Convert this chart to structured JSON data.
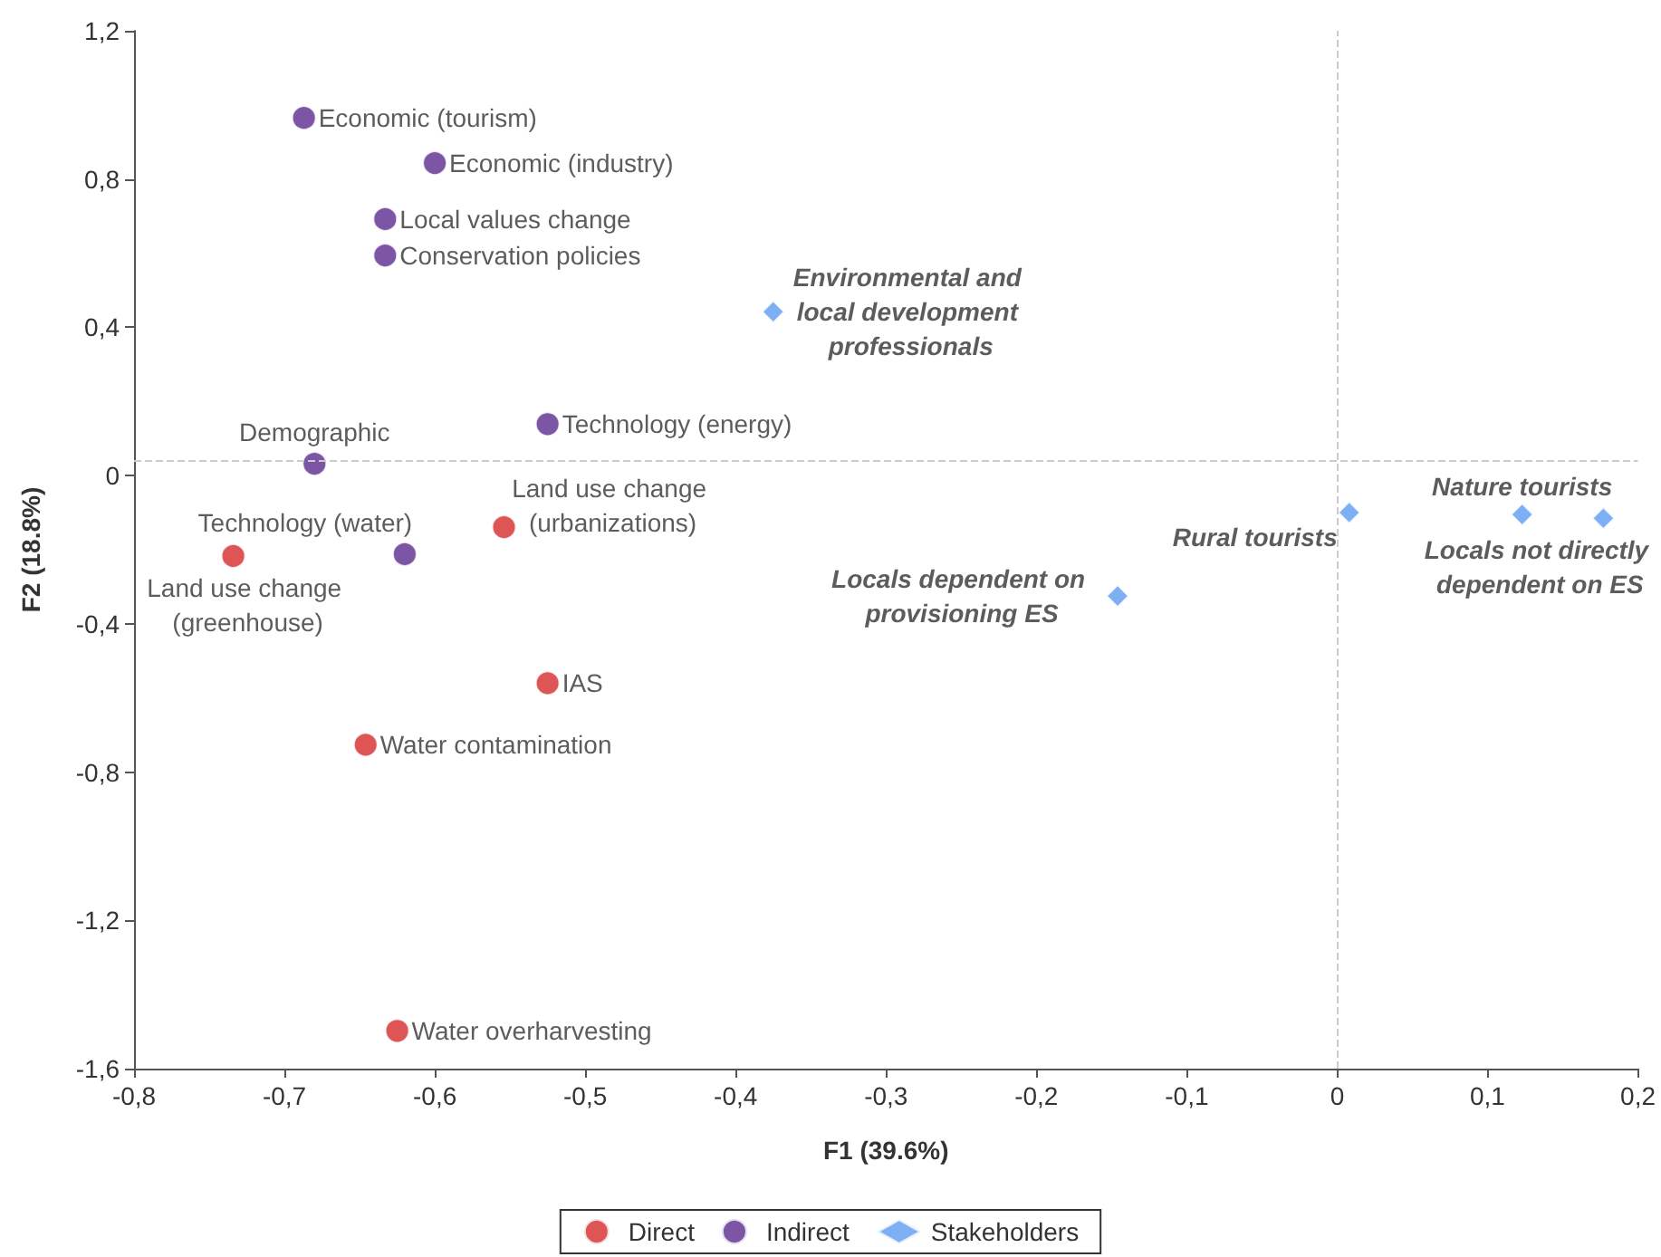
{
  "chart_data": {
    "type": "scatter",
    "xlabel": "F1 (39.6%)",
    "ylabel": "F2 (18.8%)",
    "xlim": [
      -0.8,
      0.2
    ],
    "xticks": [
      {
        "value": -0.8,
        "label": "-0,8"
      },
      {
        "value": -0.7,
        "label": "-0,7"
      },
      {
        "value": -0.6,
        "label": "-0,6"
      },
      {
        "value": -0.5,
        "label": "-0,5"
      },
      {
        "value": -0.4,
        "label": "-0,4"
      },
      {
        "value": -0.3,
        "label": "-0,3"
      },
      {
        "value": -0.2,
        "label": "-0,2"
      },
      {
        "value": -0.1,
        "label": "-0,1"
      },
      0,
      {
        "value": 0.1,
        "label": "0,1"
      },
      {
        "value": 0.2,
        "label": "0,2"
      }
    ],
    "ylim": [
      -1.6,
      1.2
    ],
    "yticks": [
      {
        "value": -1.6,
        "label": "-1,6"
      },
      {
        "value": -1.2,
        "label": "-1,2"
      },
      {
        "value": -0.8,
        "label": "-0,8"
      },
      {
        "value": -0.4,
        "label": "-0,4"
      },
      0,
      {
        "value": 0.4,
        "label": "0,4"
      },
      {
        "value": 0.8,
        "label": "0,8"
      },
      {
        "value": 1.2,
        "label": "1,2"
      }
    ],
    "grid": false,
    "legend": "bottom",
    "series": [
      {
        "name": "Direct",
        "color": "#d42a2a",
        "marker": "circle",
        "x": [
          -0.734,
          -0.554,
          -0.525,
          -0.646,
          -0.625
        ],
        "values": [
          -0.217,
          -0.139,
          -0.56,
          -0.726,
          -1.498
        ]
      },
      {
        "name": "Indirect",
        "color": "#5b2a8e",
        "marker": "circle",
        "x": [
          -0.687,
          -0.6,
          -0.633,
          -0.633,
          -0.525,
          -0.68,
          -0.62
        ],
        "values": [
          0.965,
          0.843,
          0.692,
          0.594,
          0.139,
          0.032,
          -0.212
        ]
      },
      {
        "name": "Stakeholders",
        "color": "#5b9bf0",
        "marker": "diamond",
        "x": [
          -0.375,
          -0.146,
          0.008,
          0.123,
          0.177
        ],
        "values": [
          0.442,
          -0.325,
          -0.1,
          -0.105,
          -0.115
        ]
      }
    ],
    "annotations": [
      {
        "text": "Land use change (greenhouse)",
        "x": -0.734,
        "y": -0.217
      },
      {
        "text": "Land use change (urbanizations)",
        "x": -0.554,
        "y": -0.139
      },
      {
        "text": "IAS",
        "x": -0.525,
        "y": -0.56
      },
      {
        "text": "Water contamination",
        "x": -0.646,
        "y": -0.726
      },
      {
        "text": "Water overharvesting",
        "x": -0.625,
        "y": -1.498
      },
      {
        "text": "Economic (tourism)",
        "x": -0.687,
        "y": 0.965
      },
      {
        "text": "Economic (industry)",
        "x": -0.6,
        "y": 0.843
      },
      {
        "text": "Local values change",
        "x": -0.633,
        "y": 0.692
      },
      {
        "text": "Conservation policies",
        "x": -0.633,
        "y": 0.594
      },
      {
        "text": "Technology (energy)",
        "x": -0.525,
        "y": 0.139
      },
      {
        "text": "Demographic",
        "x": -0.68,
        "y": 0.032
      },
      {
        "text": "Technology (water)",
        "x": -0.62,
        "y": -0.212
      },
      {
        "text": "Environmental and local development professionals",
        "x": -0.375,
        "y": 0.442
      },
      {
        "text": "Locals dependent on provisioning ES",
        "x": -0.146,
        "y": -0.325
      },
      {
        "text": "Rural tourists",
        "x": 0.008,
        "y": -0.1
      },
      {
        "text": "Nature tourists",
        "x": 0.123,
        "y": -0.105
      },
      {
        "text": "Locals not directly dependent on ES",
        "x": 0.177,
        "y": -0.115
      }
    ],
    "ref_lines": [
      {
        "axis": "x",
        "value": 0,
        "color": "#cccccc",
        "line_style": "dashed"
      },
      {
        "axis": "y",
        "value": 0.04,
        "color": "#cccccc",
        "line_style": "dashed"
      }
    ]
  }
}
